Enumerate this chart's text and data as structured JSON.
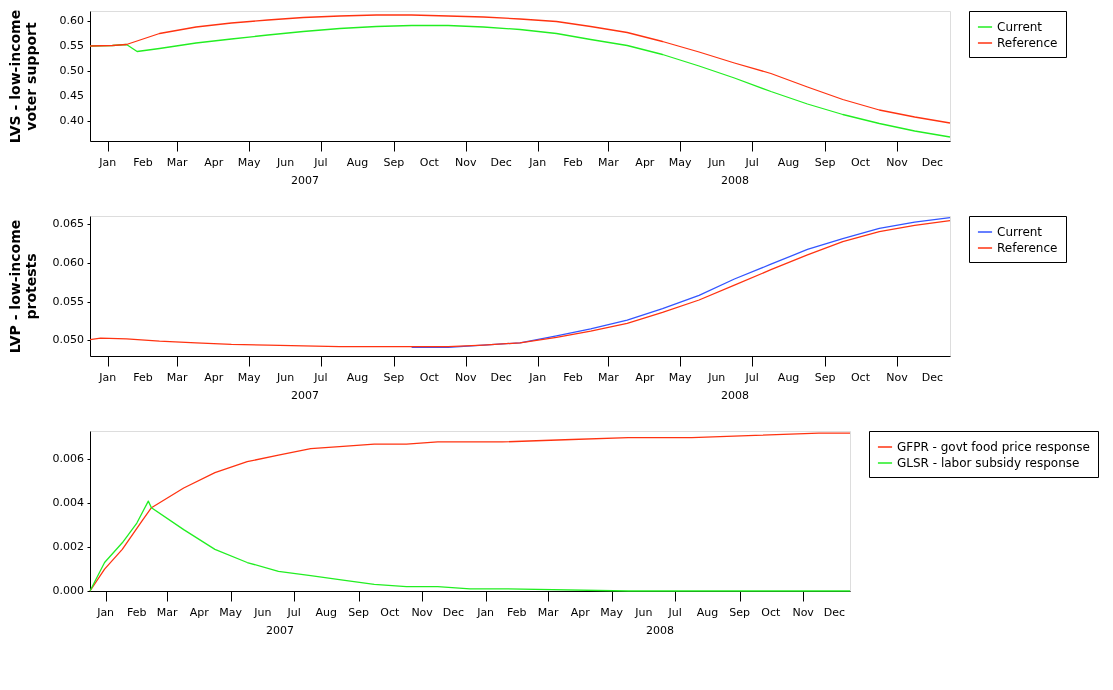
{
  "chart_data": [
    {
      "type": "line",
      "ylabel": "LVS - low-income\nvoter support",
      "legend": "right",
      "xlim": [
        "2007-01-01",
        "2008-12-31"
      ],
      "ylim": [
        0.36,
        0.62
      ],
      "yticks": [
        {
          "value": 0.4,
          "label": "0.40"
        },
        {
          "value": 0.45,
          "label": "0.45"
        },
        {
          "value": 0.5,
          "label": "0.50"
        },
        {
          "value": 0.55,
          "label": "0.55"
        },
        {
          "value": 0.6,
          "label": "0.60"
        }
      ],
      "xticks": [
        {
          "value": "2007-01-16",
          "label": "Jan"
        },
        {
          "value": "2007-02-15",
          "label": "Feb"
        },
        {
          "value": "2007-03-16",
          "label": "Mar"
        },
        {
          "value": "2007-04-16",
          "label": "Apr"
        },
        {
          "value": "2007-05-16",
          "label": "May"
        },
        {
          "value": "2007-06-16",
          "label": "Jun"
        },
        {
          "value": "2007-07-16",
          "label": "Jul"
        },
        {
          "value": "2007-08-16",
          "label": "Aug"
        },
        {
          "value": "2007-09-16",
          "label": "Sep"
        },
        {
          "value": "2007-10-16",
          "label": "Oct"
        },
        {
          "value": "2007-11-16",
          "label": "Nov"
        },
        {
          "value": "2007-12-16",
          "label": "Dec"
        },
        {
          "value": "2008-01-16",
          "label": "Jan"
        },
        {
          "value": "2008-02-15",
          "label": "Feb"
        },
        {
          "value": "2008-03-16",
          "label": "Mar"
        },
        {
          "value": "2008-04-16",
          "label": "Apr"
        },
        {
          "value": "2008-05-16",
          "label": "May"
        },
        {
          "value": "2008-06-16",
          "label": "Jun"
        },
        {
          "value": "2008-07-16",
          "label": "Jul"
        },
        {
          "value": "2008-08-16",
          "label": "Aug"
        },
        {
          "value": "2008-09-16",
          "label": "Sep"
        },
        {
          "value": "2008-10-16",
          "label": "Oct"
        },
        {
          "value": "2008-11-16",
          "label": "Nov"
        },
        {
          "value": "2008-12-16",
          "label": "Dec"
        }
      ],
      "annotations": [
        "2007",
        "2008"
      ],
      "series": [
        {
          "name": "Current",
          "color": "#22ee22",
          "x": [
            "2007-01-01",
            "2007-01-20",
            "2007-02-01",
            "2007-02-10",
            "2007-03-01",
            "2007-04-01",
            "2007-05-01",
            "2007-06-01",
            "2007-07-01",
            "2007-08-01",
            "2007-09-01",
            "2007-10-01",
            "2007-11-01",
            "2007-12-01",
            "2008-01-01",
            "2008-02-01",
            "2008-03-01",
            "2008-04-01",
            "2008-05-01",
            "2008-06-01",
            "2008-07-01",
            "2008-08-01",
            "2008-09-01",
            "2008-10-01",
            "2008-11-01",
            "2008-12-01",
            "2008-12-31"
          ],
          "values": [
            0.55,
            0.551,
            0.553,
            0.539,
            0.545,
            0.556,
            0.564,
            0.572,
            0.579,
            0.585,
            0.589,
            0.591,
            0.591,
            0.588,
            0.583,
            0.575,
            0.563,
            0.551,
            0.533,
            0.51,
            0.486,
            0.459,
            0.434,
            0.413,
            0.395,
            0.38,
            0.368
          ]
        },
        {
          "name": "Reference",
          "color": "#ff3311",
          "x": [
            "2007-01-01",
            "2007-01-20",
            "2007-02-01",
            "2007-03-01",
            "2007-04-01",
            "2007-05-01",
            "2007-06-01",
            "2007-07-01",
            "2007-08-01",
            "2007-09-01",
            "2007-10-01",
            "2007-11-01",
            "2007-12-01",
            "2008-01-01",
            "2008-02-01",
            "2008-03-01",
            "2008-04-01",
            "2008-05-01",
            "2008-06-01",
            "2008-07-01",
            "2008-08-01",
            "2008-09-01",
            "2008-10-01",
            "2008-11-01",
            "2008-12-01",
            "2008-12-31"
          ],
          "values": [
            0.55,
            0.551,
            0.553,
            0.575,
            0.588,
            0.596,
            0.602,
            0.607,
            0.61,
            0.612,
            0.612,
            0.61,
            0.608,
            0.604,
            0.599,
            0.589,
            0.577,
            0.559,
            0.538,
            0.516,
            0.495,
            0.468,
            0.443,
            0.422,
            0.408,
            0.396
          ]
        }
      ]
    },
    {
      "type": "line",
      "ylabel": "LVP - low-income\nprotests",
      "legend": "right",
      "xlim": [
        "2007-01-01",
        "2008-12-31"
      ],
      "ylim": [
        0.048,
        0.066
      ],
      "yticks": [
        {
          "value": 0.05,
          "label": "0.050"
        },
        {
          "value": 0.055,
          "label": "0.055"
        },
        {
          "value": 0.06,
          "label": "0.060"
        },
        {
          "value": 0.065,
          "label": "0.065"
        }
      ],
      "xticks": [
        {
          "value": "2007-01-16",
          "label": "Jan"
        },
        {
          "value": "2007-02-15",
          "label": "Feb"
        },
        {
          "value": "2007-03-16",
          "label": "Mar"
        },
        {
          "value": "2007-04-16",
          "label": "Apr"
        },
        {
          "value": "2007-05-16",
          "label": "May"
        },
        {
          "value": "2007-06-16",
          "label": "Jun"
        },
        {
          "value": "2007-07-16",
          "label": "Jul"
        },
        {
          "value": "2007-08-16",
          "label": "Aug"
        },
        {
          "value": "2007-09-16",
          "label": "Sep"
        },
        {
          "value": "2007-10-16",
          "label": "Oct"
        },
        {
          "value": "2007-11-16",
          "label": "Nov"
        },
        {
          "value": "2007-12-16",
          "label": "Dec"
        },
        {
          "value": "2008-01-16",
          "label": "Jan"
        },
        {
          "value": "2008-02-15",
          "label": "Feb"
        },
        {
          "value": "2008-03-16",
          "label": "Mar"
        },
        {
          "value": "2008-04-16",
          "label": "Apr"
        },
        {
          "value": "2008-05-16",
          "label": "May"
        },
        {
          "value": "2008-06-16",
          "label": "Jun"
        },
        {
          "value": "2008-07-16",
          "label": "Jul"
        },
        {
          "value": "2008-08-16",
          "label": "Aug"
        },
        {
          "value": "2008-09-16",
          "label": "Sep"
        },
        {
          "value": "2008-10-16",
          "label": "Oct"
        },
        {
          "value": "2008-11-16",
          "label": "Nov"
        },
        {
          "value": "2008-12-16",
          "label": "Dec"
        }
      ],
      "annotations": [
        "2007",
        "2008"
      ],
      "x": [
        "2007-01-01",
        "2007-01-10",
        "2007-02-01",
        "2007-03-01",
        "2007-04-01",
        "2007-05-01",
        "2007-06-01",
        "2007-07-01",
        "2007-08-01",
        "2007-09-01",
        "2007-10-01",
        "2007-11-01",
        "2007-12-01",
        "2008-01-01",
        "2008-02-01",
        "2008-03-01",
        "2008-04-01",
        "2008-05-01",
        "2008-06-01",
        "2008-07-01",
        "2008-08-01",
        "2008-09-01",
        "2008-10-01",
        "2008-11-01",
        "2008-12-01",
        "2008-12-31"
      ],
      "series": [
        {
          "name": "Current",
          "color": "#3355ff",
          "values": [
            null,
            null,
            null,
            null,
            null,
            null,
            null,
            null,
            null,
            null,
            0.0491,
            0.0491,
            0.0494,
            0.0497,
            0.0506,
            0.0515,
            0.0526,
            0.0541,
            0.0558,
            0.0579,
            0.0598,
            0.0617,
            0.0631,
            0.0644,
            0.0652,
            0.0658
          ]
        },
        {
          "name": "Reference",
          "color": "#ff3311",
          "values": [
            0.0501,
            0.0503,
            0.0502,
            0.0499,
            0.0497,
            0.0495,
            0.0494,
            0.0493,
            0.0492,
            0.0492,
            0.0492,
            0.0492,
            0.0494,
            0.0497,
            0.0504,
            0.0512,
            0.0522,
            0.0536,
            0.0552,
            0.0571,
            0.0591,
            0.061,
            0.0627,
            0.064,
            0.0648,
            0.0654
          ]
        }
      ]
    },
    {
      "type": "line",
      "legend": "right",
      "xlim": [
        "2007-01-01",
        "2008-12-31"
      ],
      "ylim": [
        0,
        0.0073
      ],
      "yticks": [
        {
          "value": 0,
          "label": "0.000"
        },
        {
          "value": 0.002,
          "label": "0.002"
        },
        {
          "value": 0.004,
          "label": "0.004"
        },
        {
          "value": 0.006,
          "label": "0.006"
        }
      ],
      "xticks": [
        {
          "value": "2007-01-16",
          "label": "Jan"
        },
        {
          "value": "2007-02-15",
          "label": "Feb"
        },
        {
          "value": "2007-03-16",
          "label": "Mar"
        },
        {
          "value": "2007-04-16",
          "label": "Apr"
        },
        {
          "value": "2007-05-16",
          "label": "May"
        },
        {
          "value": "2007-06-16",
          "label": "Jun"
        },
        {
          "value": "2007-07-16",
          "label": "Jul"
        },
        {
          "value": "2007-08-16",
          "label": "Aug"
        },
        {
          "value": "2007-09-16",
          "label": "Sep"
        },
        {
          "value": "2007-10-16",
          "label": "Oct"
        },
        {
          "value": "2007-11-16",
          "label": "Nov"
        },
        {
          "value": "2007-12-16",
          "label": "Dec"
        },
        {
          "value": "2008-01-16",
          "label": "Jan"
        },
        {
          "value": "2008-02-15",
          "label": "Feb"
        },
        {
          "value": "2008-03-16",
          "label": "Mar"
        },
        {
          "value": "2008-04-16",
          "label": "Apr"
        },
        {
          "value": "2008-05-16",
          "label": "May"
        },
        {
          "value": "2008-06-16",
          "label": "Jun"
        },
        {
          "value": "2008-07-16",
          "label": "Jul"
        },
        {
          "value": "2008-08-16",
          "label": "Aug"
        },
        {
          "value": "2008-09-16",
          "label": "Sep"
        },
        {
          "value": "2008-10-16",
          "label": "Oct"
        },
        {
          "value": "2008-11-16",
          "label": "Nov"
        },
        {
          "value": "2008-12-16",
          "label": "Dec"
        }
      ],
      "annotations": [
        "2007",
        "2008"
      ],
      "series": [
        {
          "name": "GFPR - govt food price response",
          "color": "#ff3311",
          "x": [
            "2007-01-01",
            "2007-01-15",
            "2007-02-01",
            "2007-02-20",
            "2007-03-01",
            "2007-04-01",
            "2007-05-01",
            "2007-06-01",
            "2007-07-01",
            "2007-08-01",
            "2007-09-01",
            "2007-10-01",
            "2007-11-01",
            "2007-12-01",
            "2008-01-01",
            "2008-02-01",
            "2008-04-01",
            "2008-06-01",
            "2008-08-01",
            "2008-10-01",
            "2008-12-01",
            "2008-12-31"
          ],
          "values": [
            0,
            0.001,
            0.0019,
            0.0032,
            0.0038,
            0.0047,
            0.0054,
            0.0059,
            0.0062,
            0.0065,
            0.0066,
            0.0067,
            0.0067,
            0.0068,
            0.0068,
            0.0068,
            0.0069,
            0.007,
            0.007,
            0.0071,
            0.0072,
            0.0072
          ]
        },
        {
          "name": "GLSR - labor subsidy response",
          "color": "#22ee22",
          "x": [
            "2007-01-01",
            "2007-01-15",
            "2007-02-01",
            "2007-02-15",
            "2007-02-26",
            "2007-03-01",
            "2007-04-01",
            "2007-05-01",
            "2007-06-01",
            "2007-07-01",
            "2007-08-01",
            "2007-09-01",
            "2007-10-01",
            "2007-11-01",
            "2007-12-01",
            "2008-01-01",
            "2008-02-01",
            "2008-06-01",
            "2008-12-31"
          ],
          "values": [
            0,
            0.0013,
            0.0022,
            0.0031,
            0.0041,
            0.0038,
            0.0028,
            0.0019,
            0.0013,
            0.0009,
            0.0007,
            0.0005,
            0.0003,
            0.0002,
            0.0002,
            0.0001,
            0.0001,
            0,
            0
          ]
        }
      ]
    }
  ]
}
